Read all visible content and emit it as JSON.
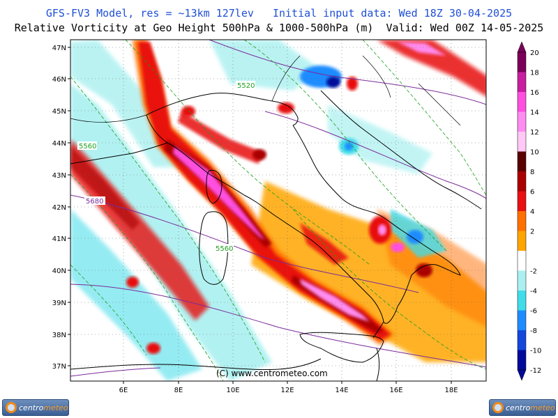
{
  "header": {
    "line1": "GFS-FV3 Model, res = ~13km 127lev   Initial input data: Wed 18Z 30-04-2025",
    "line2": "Relative Vorticity at Geo Height 500hPa & 1000-500hPa (m)  Valid: Wed 00Z 14-05-2025"
  },
  "map": {
    "lat_labels": [
      "47N",
      "46N",
      "45N",
      "44N",
      "43N",
      "42N",
      "41N",
      "40N",
      "39N",
      "38N",
      "37N"
    ],
    "lon_labels": [
      "6E",
      "8E",
      "10E",
      "12E",
      "14E",
      "16E",
      "18E"
    ],
    "contour_labels": [
      "5520",
      "5560",
      "5680",
      "5560"
    ],
    "credit": "(C) www.centrometeo.com"
  },
  "colorbar": {
    "levels": [
      "20",
      "18",
      "16",
      "14",
      "12",
      "10",
      "8",
      "6",
      "4",
      "2",
      "-2",
      "-4",
      "-6",
      "-8",
      "-10",
      "-12"
    ],
    "colors": [
      "#7a005a",
      "#c81ea0",
      "#ff4fe0",
      "#ff8cf0",
      "#ffc8f6",
      "#5a0000",
      "#aa0000",
      "#e81010",
      "#ff7000",
      "#ffa500",
      "#ffffff",
      "#aaf0f0",
      "#40dce8",
      "#1e8cff",
      "#1446dc",
      "#000a9a"
    ]
  },
  "logos": {
    "left_a": "centro",
    "left_b": "meteo",
    "right_a": "centro",
    "right_b": "meteo"
  }
}
